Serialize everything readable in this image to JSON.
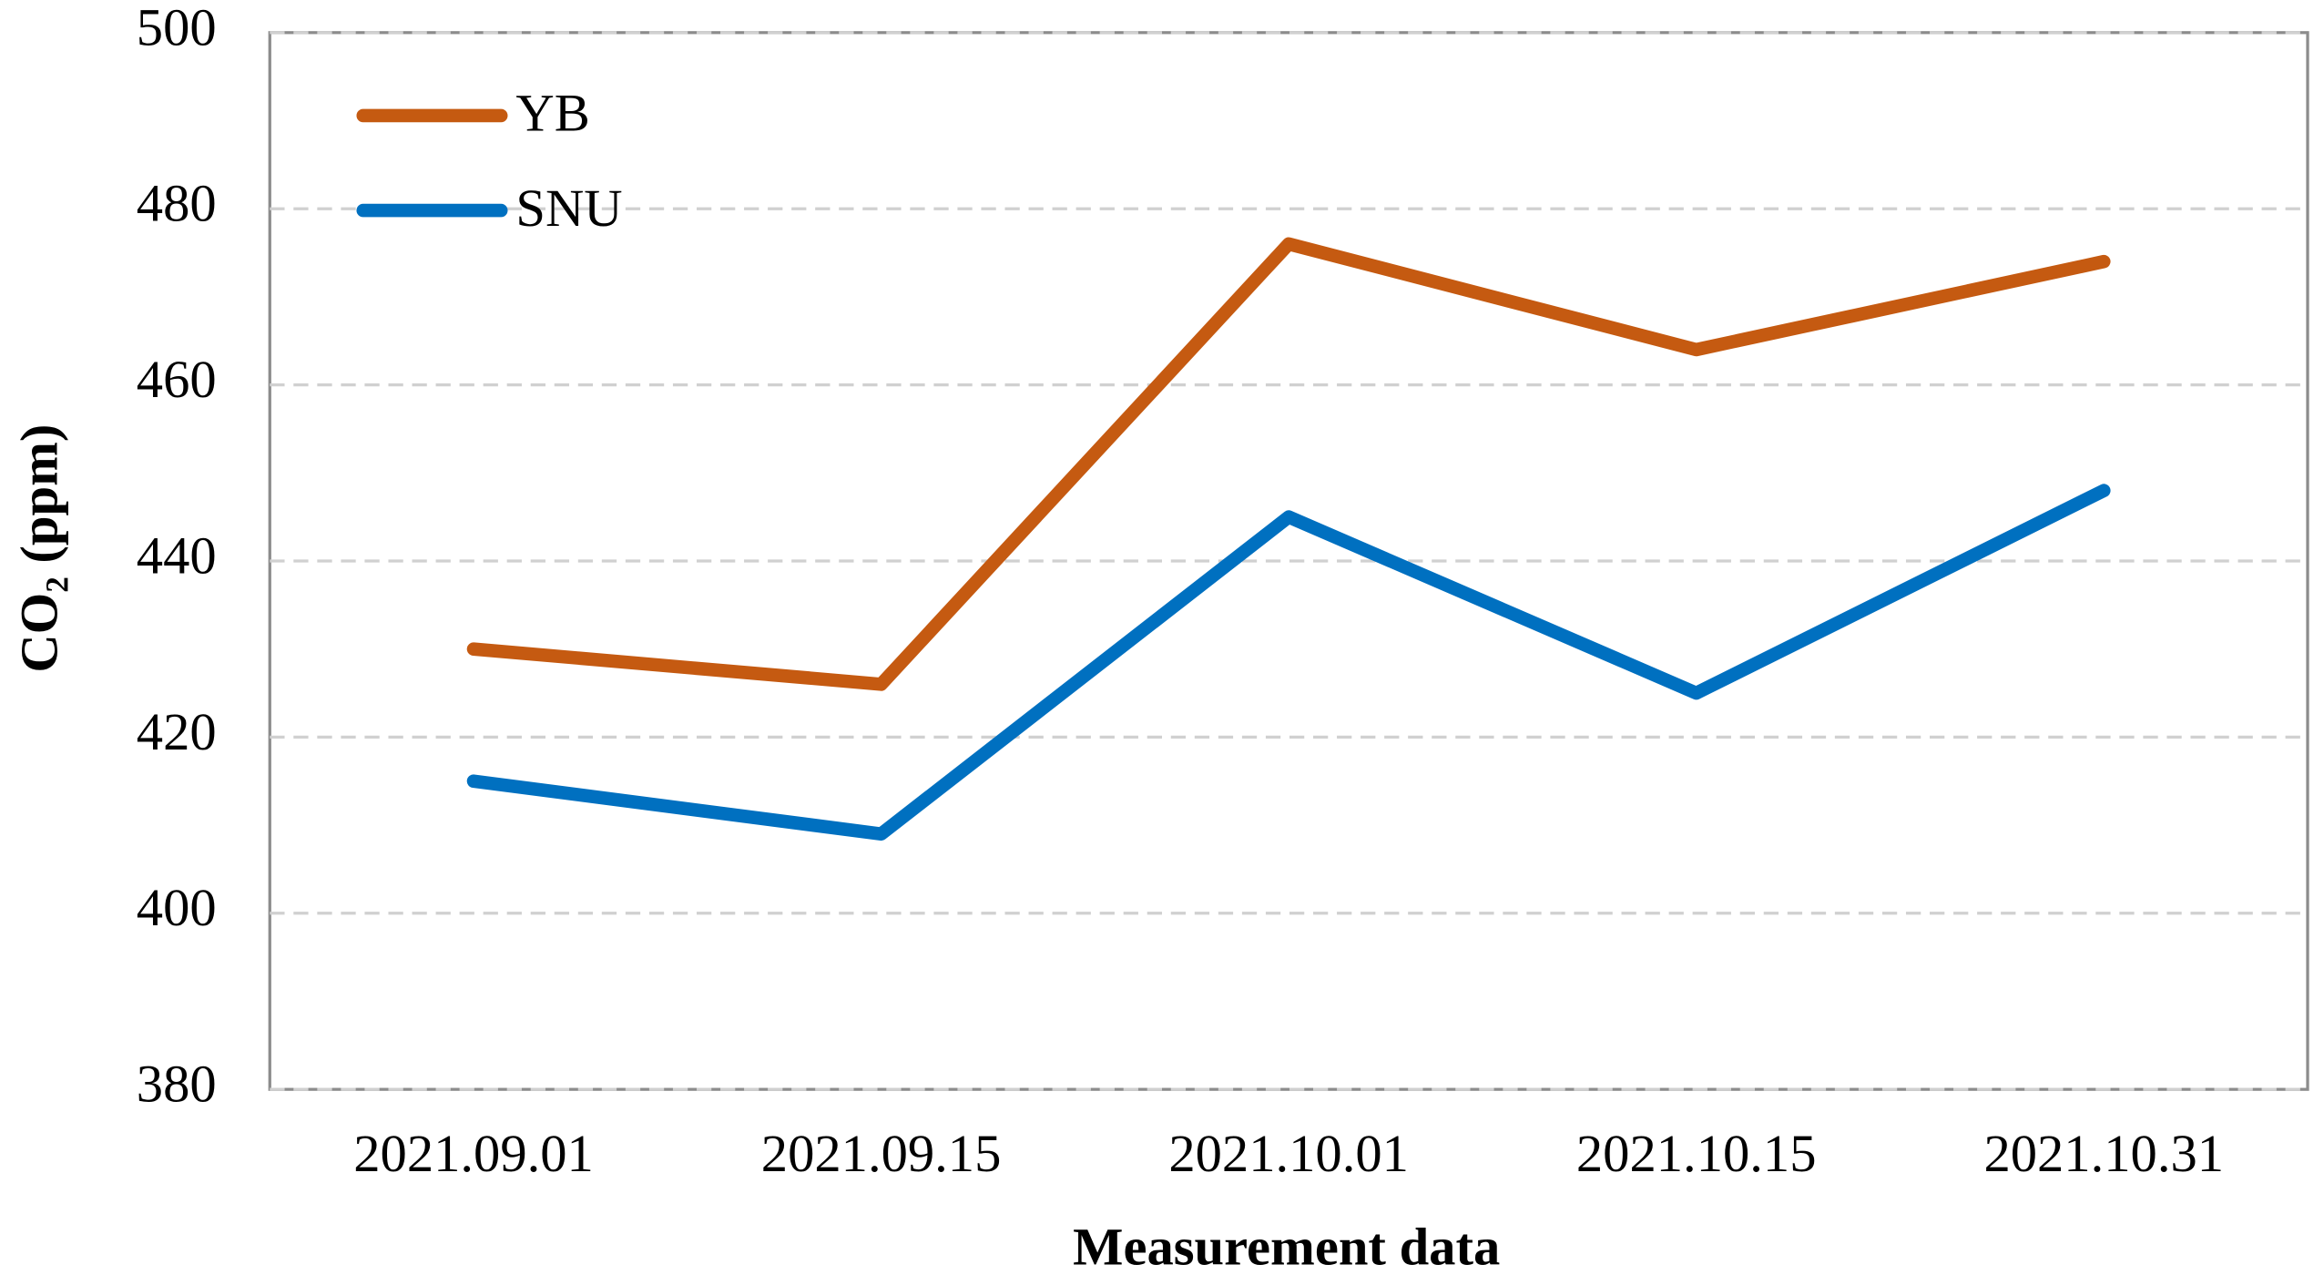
{
  "chart_data": {
    "type": "line",
    "x_label": "Measurement data",
    "y_label": "CO₂ (ppm)",
    "categories": [
      "2021.09.01",
      "2021.09.15",
      "2021.10.01",
      "2021.10.15",
      "2021.10.31"
    ],
    "series": [
      {
        "name": "YB",
        "color": "#c55a11",
        "values": [
          430,
          426,
          476,
          464,
          474
        ]
      },
      {
        "name": "SNU",
        "color": "#0070c0",
        "values": [
          415,
          409,
          445,
          425,
          448
        ]
      }
    ],
    "ylim": [
      380,
      500
    ],
    "yticks": [
      380,
      400,
      420,
      440,
      460,
      480,
      500
    ],
    "grid": true,
    "legend": "top-left"
  }
}
